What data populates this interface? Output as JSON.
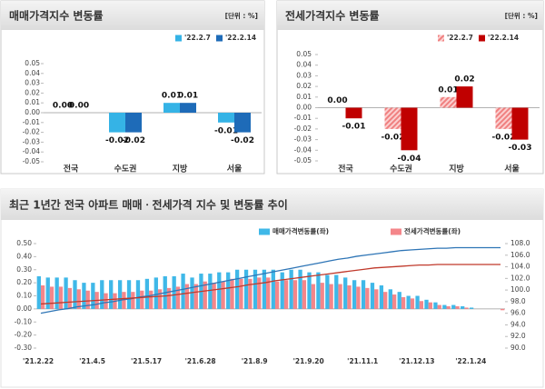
{
  "chart_data": [
    {
      "type": "bar",
      "title": "매매가격지수 변동률",
      "unit": "[단위 : %]",
      "categories": [
        "전국",
        "수도권",
        "지방",
        "서울"
      ],
      "series": [
        {
          "name": "'22.2.7",
          "color": "#35b3e6",
          "values": [
            0,
            -0.02,
            0.01,
            -0.01
          ],
          "value_labels": [
            "0.00",
            "-0.02",
            "0.01",
            "-0.01"
          ]
        },
        {
          "name": "'22.2.14",
          "color": "#1e6bb8",
          "values": [
            0,
            -0.02,
            0.01,
            -0.02
          ],
          "value_labels": [
            "0.00",
            "-0.02",
            "0.01",
            "-0.02"
          ]
        }
      ],
      "ylim": [
        -0.05,
        0.05
      ],
      "yticks": [
        0.05,
        0.04,
        0.03,
        0.02,
        0.01,
        {
          "value": 0,
          "label": "0.00"
        },
        -0.01,
        -0.02,
        -0.03,
        -0.04,
        -0.05
      ],
      "legend": "top-right"
    },
    {
      "type": "bar",
      "title": "전세가격지수 변동률",
      "unit": "[단위 : %]",
      "categories": [
        "전국",
        "수도권",
        "지방",
        "서울"
      ],
      "series": [
        {
          "name": "'22.2.7",
          "color": "#f08080",
          "pattern": "hatch",
          "values": [
            0,
            -0.02,
            0.01,
            -0.02
          ],
          "value_labels": [
            "0.00",
            "-0.02",
            "0.01",
            "-0.02"
          ]
        },
        {
          "name": "'22.2.14",
          "color": "#c00000",
          "values": [
            -0.01,
            -0.04,
            0.02,
            -0.03
          ],
          "value_labels": [
            "-0.01",
            "-0.04",
            "0.02",
            "-0.03"
          ]
        }
      ],
      "ylim": [
        -0.05,
        0.05
      ],
      "yticks": [
        0.05,
        0.04,
        0.03,
        0.02,
        0.01,
        {
          "value": 0,
          "label": "0.00"
        },
        -0.01,
        -0.02,
        -0.03,
        -0.04,
        -0.05
      ],
      "legend": "top-right"
    },
    {
      "type": "bar",
      "title": "최근 1년간 전국 아파트 매매ㆍ전세가격 지수 및 변동률 추이",
      "categories": [
        "'21.2.22",
        null,
        null,
        null,
        null,
        null,
        "'21.4.5",
        null,
        null,
        null,
        null,
        null,
        "'21.5.17",
        null,
        null,
        null,
        null,
        null,
        "'21.6.28",
        null,
        null,
        null,
        null,
        null,
        "'21.8.9",
        null,
        null,
        null,
        null,
        null,
        "'21.9.20",
        null,
        null,
        null,
        null,
        null,
        "'21.11.1",
        null,
        null,
        null,
        null,
        null,
        "'21.12.13",
        null,
        null,
        null,
        null,
        null,
        "'22.1.24",
        null,
        null,
        null
      ],
      "series": [
        {
          "name": "매매가격변동률(좌)",
          "color": "#3fb8e8",
          "values": [
            0.25,
            0.24,
            0.24,
            0.24,
            0.22,
            0.2,
            0.2,
            0.22,
            0.22,
            0.22,
            0.22,
            0.22,
            0.23,
            0.24,
            0.25,
            0.25,
            0.27,
            0.24,
            0.27,
            0.27,
            0.28,
            0.28,
            0.3,
            0.3,
            0.3,
            0.3,
            0.3,
            0.28,
            0.3,
            0.3,
            0.28,
            0.28,
            0.26,
            0.26,
            0.24,
            0.22,
            0.22,
            0.2,
            0.18,
            0.15,
            0.13,
            0.1,
            0.1,
            0.07,
            0.05,
            0.03,
            0.03,
            0.02,
            0.01,
            0,
            0,
            0
          ]
        },
        {
          "name": "전세가격변동률(좌)",
          "color": "#f4868a",
          "values": [
            0.18,
            0.17,
            0.17,
            0.16,
            0.15,
            0.14,
            0.13,
            0.12,
            0.12,
            0.13,
            0.13,
            0.14,
            0.14,
            0.15,
            0.16,
            0.17,
            0.19,
            0.19,
            0.21,
            0.2,
            0.21,
            0.23,
            0.23,
            0.23,
            0.24,
            0.24,
            0.21,
            0.22,
            0.22,
            0.22,
            0.19,
            0.2,
            0.19,
            0.19,
            0.18,
            0.17,
            0.16,
            0.15,
            0.13,
            0.11,
            0.09,
            0.08,
            0.06,
            0.05,
            0.03,
            0.02,
            0.02,
            0.01,
            0,
            0,
            0,
            -0.01
          ]
        },
        {
          "type": "line",
          "axis": "y2",
          "color": "#2e75b6",
          "values": [
            96.0,
            96.3,
            96.6,
            96.8,
            97.1,
            97.3,
            97.5,
            97.8,
            98.0,
            98.3,
            98.5,
            98.8,
            99.0,
            99.3,
            99.6,
            99.9,
            100.2,
            100.5,
            100.8,
            101.1,
            101.4,
            101.7,
            102.0,
            102.3,
            102.6,
            102.9,
            103.2,
            103.5,
            103.8,
            104.1,
            104.4,
            104.7,
            105.0,
            105.3,
            105.5,
            105.8,
            106.0,
            106.2,
            106.4,
            106.6,
            106.8,
            106.9,
            107.0,
            107.1,
            107.2,
            107.2,
            107.3,
            107.3,
            107.3,
            107.3,
            107.3,
            107.3
          ]
        },
        {
          "type": "line",
          "axis": "y2",
          "color": "#c0392b",
          "values": [
            97.6,
            97.7,
            97.8,
            97.9,
            98.0,
            98.1,
            98.2,
            98.3,
            98.4,
            98.5,
            98.6,
            98.7,
            98.8,
            98.9,
            99.0,
            99.2,
            99.4,
            99.6,
            99.8,
            100.0,
            100.2,
            100.4,
            100.6,
            100.9,
            101.1,
            101.3,
            101.6,
            101.8,
            102.0,
            102.2,
            102.4,
            102.6,
            102.8,
            103.0,
            103.2,
            103.4,
            103.6,
            103.8,
            103.9,
            104.0,
            104.1,
            104.2,
            104.3,
            104.3,
            104.4,
            104.4,
            104.4,
            104.4,
            104.4,
            104.4,
            104.4,
            104.4
          ]
        }
      ],
      "ylim": [
        -0.3,
        0.5
      ],
      "yticks": [
        {
          "value": 0.5,
          "label": "0.50"
        },
        {
          "value": 0.4,
          "label": "0.40"
        },
        {
          "value": 0.3,
          "label": "0.30"
        },
        {
          "value": 0.2,
          "label": "0.20"
        },
        {
          "value": 0.1,
          "label": "0.10"
        },
        {
          "value": 0,
          "label": "0.00"
        },
        {
          "value": -0.1,
          "label": "-0.10"
        },
        {
          "value": -0.2,
          "label": "-0.20"
        },
        {
          "value": -0.3,
          "label": "-0.30"
        }
      ],
      "y2lim": [
        90,
        108
      ],
      "y2ticks": [
        {
          "value": 108,
          "label": "108.0"
        },
        {
          "value": 106,
          "label": "106.0"
        },
        {
          "value": 104,
          "label": "104.0"
        },
        {
          "value": 102,
          "label": "102.0"
        },
        {
          "value": 100,
          "label": "100.0"
        },
        {
          "value": 98,
          "label": "98.0"
        },
        {
          "value": 96,
          "label": "96.0"
        },
        {
          "value": 94,
          "label": "94.0"
        },
        {
          "value": 92,
          "label": "92.0"
        },
        {
          "value": 90,
          "label": "90.0"
        }
      ],
      "legend": "top"
    }
  ]
}
